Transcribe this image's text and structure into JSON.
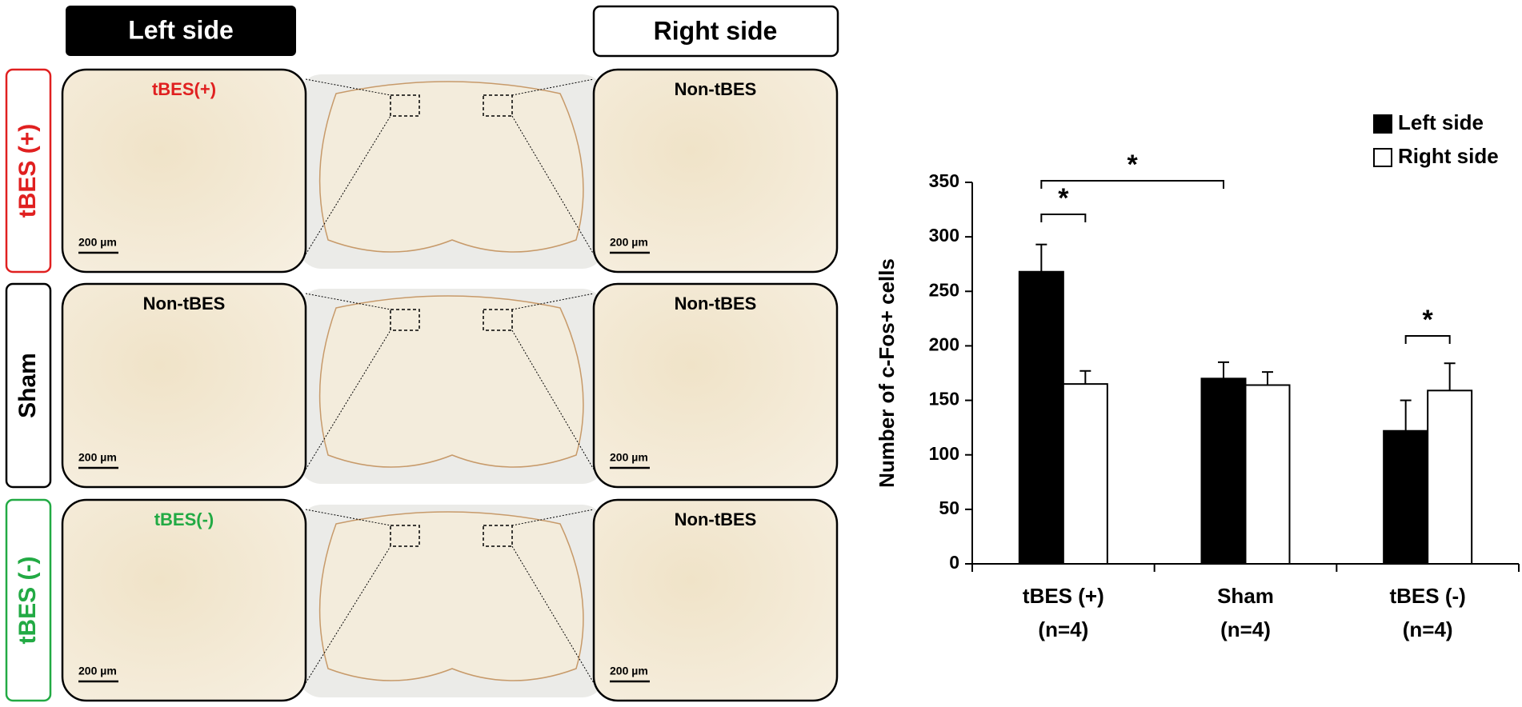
{
  "figure": {
    "headers": [
      "Left side",
      "Right side"
    ],
    "rows": [
      {
        "label": "tBES (+)",
        "color": "#e02020",
        "left": "tBES(+)",
        "right": "Non-tBES"
      },
      {
        "label": "Sham",
        "color": "#000000",
        "left": "Non-tBES",
        "right": "Non-tBES"
      },
      {
        "label": "tBES (-)",
        "color": "#22aa44",
        "left": "tBES(-)",
        "right": "Non-tBES"
      }
    ],
    "scale_bar": "200 µm"
  },
  "chart_data": {
    "type": "bar",
    "y_label": "Number of c-Fos+ cells",
    "categories": [
      [
        "tBES (+)",
        "(n=4)"
      ],
      [
        "Sham",
        "(n=4)"
      ],
      [
        "tBES (-)",
        "(n=4)"
      ]
    ],
    "series": [
      {
        "name": "Left side",
        "color": "#000000",
        "values": [
          268,
          170,
          122
        ],
        "errors": [
          25,
          15,
          28
        ]
      },
      {
        "name": "Right side",
        "color": "#ffffff",
        "values": [
          165,
          164,
          159
        ],
        "errors": [
          12,
          12,
          25
        ]
      }
    ],
    "ylim": [
      0,
      350
    ],
    "yticks": [
      0,
      50,
      100,
      150,
      200,
      250,
      300,
      350
    ],
    "annotations": [
      "*",
      "*",
      "*"
    ],
    "legend": "top-right"
  }
}
